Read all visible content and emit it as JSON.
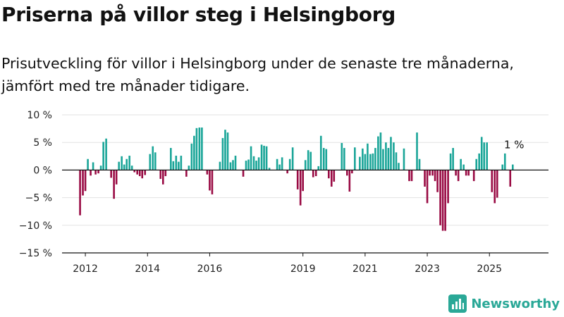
{
  "title": "Priserna på villor steg i Helsingborg",
  "subtitle": "Prisutveckling för villor i Helsingborg under de senaste tre månaderna, jämfört med tre månader tidigare.",
  "brand": "Newsworthy",
  "colors": {
    "positive": "#1aa598",
    "negative": "#990a43",
    "grid": "#e2e2e2",
    "axis": "#111111"
  },
  "chart_data": {
    "type": "bar",
    "title": "Priserna på villor steg i Helsingborg",
    "xlabel": "",
    "ylabel": "",
    "ylim": [
      -15,
      10
    ],
    "xlim": [
      2011.25,
      2026.9
    ],
    "yticks": [
      -15,
      -10,
      -5,
      0,
      5,
      10
    ],
    "ytick_labels": [
      "−15 %",
      "−10 %",
      "−5 %",
      "0 %",
      "5 %",
      "10 %"
    ],
    "xticks": [
      2012,
      2014,
      2016,
      2019,
      2021,
      2023,
      2025
    ],
    "xtick_labels": [
      "2012",
      "2014",
      "2016",
      "2019",
      "2021",
      "2023",
      "2025"
    ],
    "grid": true,
    "legend": "none",
    "x": [
      2011.5,
      2011.58,
      2011.67,
      2011.75,
      2011.83,
      2011.92,
      2012.0,
      2012.08,
      2012.17,
      2012.25,
      2012.33,
      2012.42,
      2012.5,
      2012.58,
      2012.67,
      2012.75,
      2012.83,
      2012.92,
      2013.0,
      2013.08,
      2013.17,
      2013.25,
      2013.33,
      2013.42,
      2013.5,
      2013.58,
      2013.67,
      2013.75,
      2013.83,
      2013.92,
      2014.0,
      2014.08,
      2014.17,
      2014.25,
      2014.33,
      2014.42,
      2014.5,
      2014.58,
      2014.67,
      2014.75,
      2014.83,
      2014.92,
      2015.0,
      2015.08,
      2015.17,
      2015.25,
      2015.33,
      2015.42,
      2015.5,
      2015.58,
      2015.67,
      2015.75,
      2015.83,
      2015.92,
      2016.0,
      2016.08,
      2016.17,
      2016.25,
      2016.33,
      2016.42,
      2016.5,
      2016.58,
      2016.67,
      2016.75,
      2016.83,
      2016.92,
      2017.0,
      2017.08,
      2017.17,
      2017.25,
      2017.33,
      2017.42,
      2017.5,
      2017.58,
      2017.67,
      2017.75,
      2017.83,
      2017.92,
      2018.0,
      2018.08,
      2018.17,
      2018.25,
      2018.33,
      2018.42,
      2018.5,
      2018.58,
      2018.67,
      2018.75,
      2018.83,
      2018.92,
      2019.0,
      2019.08,
      2019.17,
      2019.25,
      2019.33,
      2019.42,
      2019.5,
      2019.58,
      2019.67,
      2019.75,
      2019.83,
      2019.92,
      2020.0,
      2020.08,
      2020.17,
      2020.25,
      2020.33,
      2020.42,
      2020.5,
      2020.58,
      2020.67,
      2020.75,
      2020.83,
      2020.92,
      2021.0,
      2021.08,
      2021.17,
      2021.25,
      2021.33,
      2021.42,
      2021.5,
      2021.58,
      2021.67,
      2021.75,
      2021.83,
      2021.92,
      2022.0,
      2022.08,
      2022.17,
      2022.25,
      2022.33,
      2022.42,
      2022.5,
      2022.58,
      2022.67,
      2022.75,
      2022.83,
      2022.92,
      2023.0,
      2023.08,
      2023.17,
      2023.25,
      2023.33,
      2023.42,
      2023.5,
      2023.58,
      2023.67,
      2023.75,
      2023.83,
      2023.92,
      2024.0,
      2024.08,
      2024.17,
      2024.25,
      2024.33,
      2024.42,
      2024.5,
      2024.58,
      2024.67,
      2024.75,
      2024.83,
      2024.92,
      2025.0,
      2025.08,
      2025.17,
      2025.25,
      2025.33,
      2025.42,
      2025.5,
      2025.58,
      2025.67,
      2025.75
    ],
    "values": [
      0.0,
      0.0,
      0.0,
      0.0,
      -8.2,
      -4.6,
      -3.8,
      2.0,
      -1.0,
      1.4,
      -0.8,
      -0.6,
      0.8,
      5.1,
      5.7,
      0.0,
      -1.4,
      -5.2,
      -2.6,
      1.5,
      2.5,
      1.0,
      2.0,
      2.6,
      0.8,
      -0.4,
      -0.8,
      -1.1,
      -1.5,
      -0.9,
      0.0,
      2.9,
      4.3,
      3.2,
      0.0,
      -1.6,
      -2.6,
      -1.1,
      0.0,
      4.0,
      1.6,
      2.6,
      1.5,
      2.6,
      0.0,
      -1.2,
      0.8,
      4.8,
      6.2,
      7.6,
      7.7,
      7.7,
      0.0,
      -0.8,
      -3.7,
      -4.4,
      0.0,
      0.0,
      1.5,
      5.8,
      7.3,
      6.8,
      1.4,
      1.8,
      2.6,
      0.0,
      0.0,
      -1.2,
      1.7,
      1.9,
      4.3,
      2.5,
      1.7,
      2.3,
      4.6,
      4.4,
      4.3,
      0.4,
      0.0,
      0.0,
      2.0,
      1.0,
      2.3,
      0.0,
      -0.6,
      2.0,
      4.1,
      0.0,
      -3.5,
      -6.4,
      -3.8,
      1.8,
      3.6,
      3.3,
      -1.3,
      -1.1,
      0.7,
      6.2,
      4.0,
      3.8,
      -1.5,
      -3.0,
      -2.1,
      0.0,
      0.0,
      4.9,
      4.0,
      -1.0,
      -3.9,
      -0.6,
      4.1,
      0.0,
      2.4,
      3.9,
      2.9,
      4.8,
      2.9,
      3.0,
      4.0,
      6.1,
      6.8,
      3.8,
      5.0,
      4.0,
      6.0,
      5.0,
      3.2,
      1.3,
      0.0,
      3.9,
      0.0,
      -2.0,
      -2.0,
      0.0,
      6.8,
      2.0,
      0.0,
      -3.0,
      -6.0,
      -1.0,
      -1.0,
      -2.0,
      -4.0,
      -10.0,
      -11.0,
      -11.0,
      -6.0,
      3.0,
      4.0,
      -1.0,
      -2.0,
      2.0,
      1.0,
      -1.0,
      -1.0,
      0.0,
      -2.0,
      2.0,
      3.0,
      6.0,
      5.0,
      5.0,
      0.0,
      -4.0,
      -6.0,
      -5.0,
      0.0,
      1.0,
      3.0,
      0.0,
      -3.0,
      1.0
    ],
    "annotations": [
      {
        "label": "1 %",
        "x": 2025.75,
        "y": 1.0
      }
    ]
  }
}
